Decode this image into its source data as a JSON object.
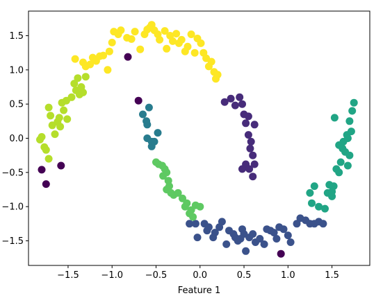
{
  "chart_data": {
    "type": "scatter",
    "xlabel": "Feature 1",
    "ylabel": "",
    "xlim": [
      -1.95,
      1.93
    ],
    "ylim": [
      -1.86,
      1.86
    ],
    "xticks": [
      -1.5,
      -1.0,
      -0.5,
      0.0,
      0.5,
      1.0,
      1.5
    ],
    "xtick_labels": [
      "−1.5",
      "−1.0",
      "−0.5",
      "0.0",
      "0.5",
      "1.0",
      "1.5"
    ],
    "yticks": [
      -1.5,
      -1.0,
      -0.5,
      0.0,
      0.5,
      1.0,
      1.5
    ],
    "ytick_labels": [
      "−1.5",
      "−1.0",
      "−0.5",
      "0.0",
      "0.5",
      "1.0",
      "1.5"
    ],
    "grid": false,
    "clusters": [
      {
        "color": "#440154",
        "points": [
          [
            -1.8,
            -0.46
          ],
          [
            -1.75,
            -0.67
          ],
          [
            -1.58,
            -0.4
          ],
          [
            -0.82,
            1.19
          ],
          [
            -0.7,
            0.55
          ],
          [
            0.92,
            -1.69
          ]
        ]
      },
      {
        "color": "#fde725",
        "points": [
          [
            -1.42,
            1.16
          ],
          [
            -1.33,
            1.11
          ],
          [
            -1.3,
            1.05
          ],
          [
            -1.25,
            1.08
          ],
          [
            -1.22,
            1.18
          ],
          [
            -1.18,
            1.13
          ],
          [
            -1.14,
            1.2
          ],
          [
            -1.1,
            1.21
          ],
          [
            -1.05,
            1.0
          ],
          [
            -1.03,
            1.27
          ],
          [
            -1.0,
            1.4
          ],
          [
            -0.98,
            1.56
          ],
          [
            -0.93,
            1.52
          ],
          [
            -0.9,
            1.58
          ],
          [
            -0.83,
            1.47
          ],
          [
            -0.78,
            1.45
          ],
          [
            -0.74,
            1.56
          ],
          [
            -0.68,
            1.3
          ],
          [
            -0.63,
            1.52
          ],
          [
            -0.6,
            1.59
          ],
          [
            -0.57,
            1.62
          ],
          [
            -0.55,
            1.66
          ],
          [
            -0.52,
            1.58
          ],
          [
            -0.48,
            1.52
          ],
          [
            -0.46,
            1.44
          ],
          [
            -0.4,
            1.57
          ],
          [
            -0.38,
            1.31
          ],
          [
            -0.34,
            1.5
          ],
          [
            -0.31,
            1.42
          ],
          [
            -0.27,
            1.53
          ],
          [
            -0.24,
            1.39
          ],
          [
            -0.21,
            1.44
          ],
          [
            -0.17,
            1.27
          ],
          [
            -0.14,
            1.34
          ],
          [
            -0.1,
            1.52
          ],
          [
            -0.06,
            1.25
          ],
          [
            -0.03,
            1.46
          ],
          [
            0.01,
            1.39
          ],
          [
            0.04,
            1.25
          ],
          [
            0.07,
            1.17
          ],
          [
            0.1,
            1.05
          ],
          [
            0.13,
            1.12
          ],
          [
            0.16,
            0.97
          ],
          [
            0.18,
            0.87
          ],
          [
            0.2,
            0.93
          ]
        ]
      },
      {
        "color": "#b5de2b",
        "points": [
          [
            -1.82,
            -0.02
          ],
          [
            -1.8,
            0.02
          ],
          [
            -1.77,
            -0.13
          ],
          [
            -1.75,
            -0.17
          ],
          [
            -1.72,
            -0.3
          ],
          [
            -1.72,
            0.45
          ],
          [
            -1.7,
            0.33
          ],
          [
            -1.68,
            0.19
          ],
          [
            -1.65,
            0.06
          ],
          [
            -1.62,
            0.24
          ],
          [
            -1.6,
            0.3
          ],
          [
            -1.59,
            0.17
          ],
          [
            -1.57,
            0.52
          ],
          [
            -1.55,
            0.41
          ],
          [
            -1.52,
            0.55
          ],
          [
            -1.51,
            0.28
          ],
          [
            -1.46,
            0.6
          ],
          [
            -1.43,
            0.8
          ],
          [
            -1.41,
            0.7
          ],
          [
            -1.39,
            0.88
          ],
          [
            -1.37,
            0.64
          ],
          [
            -1.35,
            0.75
          ],
          [
            -1.33,
            0.67
          ],
          [
            -1.3,
            0.9
          ]
        ]
      },
      {
        "color": "#3b528b",
        "points": [
          [
            -0.12,
            -1.25
          ],
          [
            -0.05,
            -1.25
          ],
          [
            -0.03,
            -1.45
          ],
          [
            0.05,
            -1.25
          ],
          [
            0.08,
            -1.35
          ],
          [
            0.1,
            -1.3
          ],
          [
            0.15,
            -1.45
          ],
          [
            0.17,
            -1.38
          ],
          [
            0.22,
            -1.3
          ],
          [
            0.25,
            -1.22
          ],
          [
            0.3,
            -1.55
          ],
          [
            0.33,
            -1.35
          ],
          [
            0.38,
            -1.4
          ],
          [
            0.4,
            -1.45
          ],
          [
            0.43,
            -1.5
          ],
          [
            0.46,
            -1.47
          ],
          [
            0.48,
            -1.33
          ],
          [
            0.5,
            -1.4
          ],
          [
            0.52,
            -1.65
          ],
          [
            0.56,
            -1.45
          ],
          [
            0.6,
            -1.4
          ],
          [
            0.63,
            -1.52
          ],
          [
            0.68,
            -1.47
          ],
          [
            0.73,
            -1.55
          ],
          [
            0.76,
            -1.33
          ],
          [
            0.8,
            -1.35
          ],
          [
            0.84,
            -1.38
          ],
          [
            0.87,
            -1.47
          ],
          [
            0.9,
            -1.3
          ],
          [
            0.95,
            -1.33
          ],
          [
            1.0,
            -1.42
          ],
          [
            1.03,
            -1.52
          ],
          [
            1.1,
            -1.25
          ],
          [
            1.14,
            -1.17
          ],
          [
            1.2,
            -1.2
          ],
          [
            1.25,
            -1.25
          ],
          [
            1.3,
            -1.25
          ],
          [
            1.35,
            -1.22
          ],
          [
            1.4,
            -1.25
          ]
        ]
      },
      {
        "color": "#472c7a",
        "points": [
          [
            0.28,
            0.53
          ],
          [
            0.35,
            0.58
          ],
          [
            0.4,
            0.48
          ],
          [
            0.45,
            0.6
          ],
          [
            0.48,
            0.5
          ],
          [
            0.5,
            0.35
          ],
          [
            0.52,
            0.22
          ],
          [
            0.55,
            0.05
          ],
          [
            0.57,
            -0.15
          ],
          [
            0.58,
            -0.05
          ],
          [
            0.6,
            -0.25
          ],
          [
            0.52,
            -0.38
          ],
          [
            0.48,
            -0.45
          ],
          [
            0.56,
            -0.45
          ],
          [
            0.62,
            -0.38
          ],
          [
            0.6,
            -0.56
          ],
          [
            0.62,
            0.2
          ],
          [
            0.55,
            0.32
          ]
        ]
      },
      {
        "color": "#287c8e",
        "points": [
          [
            -0.65,
            0.35
          ],
          [
            -0.58,
            0.45
          ],
          [
            -0.61,
            0.25
          ],
          [
            -0.6,
            0.2
          ],
          [
            -0.6,
            0.0
          ],
          [
            -0.55,
            -0.05
          ],
          [
            -0.48,
            0.08
          ],
          [
            -0.55,
            -0.12
          ],
          [
            -0.52,
            -0.05
          ]
        ]
      },
      {
        "color": "#21a585",
        "points": [
          [
            1.25,
            -0.8
          ],
          [
            1.27,
            -0.95
          ],
          [
            1.3,
            -0.7
          ],
          [
            1.35,
            -1.0
          ],
          [
            1.45,
            -0.8
          ],
          [
            1.47,
            -0.68
          ],
          [
            1.5,
            -0.78
          ],
          [
            1.52,
            -0.7
          ],
          [
            1.55,
            -0.45
          ],
          [
            1.58,
            -0.5
          ],
          [
            1.6,
            -0.35
          ],
          [
            1.62,
            -0.15
          ],
          [
            1.63,
            -0.05
          ],
          [
            1.65,
            -0.2
          ],
          [
            1.67,
            0.05
          ],
          [
            1.68,
            -0.4
          ],
          [
            1.7,
            0.25
          ],
          [
            1.72,
            0.1
          ],
          [
            1.73,
            0.4
          ],
          [
            1.75,
            0.52
          ],
          [
            1.7,
            -0.25
          ],
          [
            1.58,
            -0.1
          ],
          [
            1.53,
            0.3
          ],
          [
            1.5,
            -0.85
          ],
          [
            1.42,
            -1.03
          ],
          [
            1.68,
            0.0
          ]
        ]
      },
      {
        "color": "#5ec962",
        "points": [
          [
            -0.5,
            -0.35
          ],
          [
            -0.47,
            -0.38
          ],
          [
            -0.43,
            -0.4
          ],
          [
            -0.4,
            -0.45
          ],
          [
            -0.38,
            -0.5
          ],
          [
            -0.42,
            -0.55
          ],
          [
            -0.36,
            -0.62
          ],
          [
            -0.35,
            -0.7
          ],
          [
            -0.38,
            -0.75
          ],
          [
            -0.33,
            -0.8
          ],
          [
            -0.3,
            -0.83
          ],
          [
            -0.25,
            -0.8
          ],
          [
            -0.2,
            -0.88
          ],
          [
            -0.15,
            -0.95
          ],
          [
            -0.17,
            -1.0
          ],
          [
            -0.1,
            -1.05
          ],
          [
            -0.05,
            -0.98
          ],
          [
            0.0,
            -1.0
          ],
          [
            -0.12,
            -1.1
          ],
          [
            -0.08,
            -1.15
          ]
        ]
      }
    ]
  }
}
